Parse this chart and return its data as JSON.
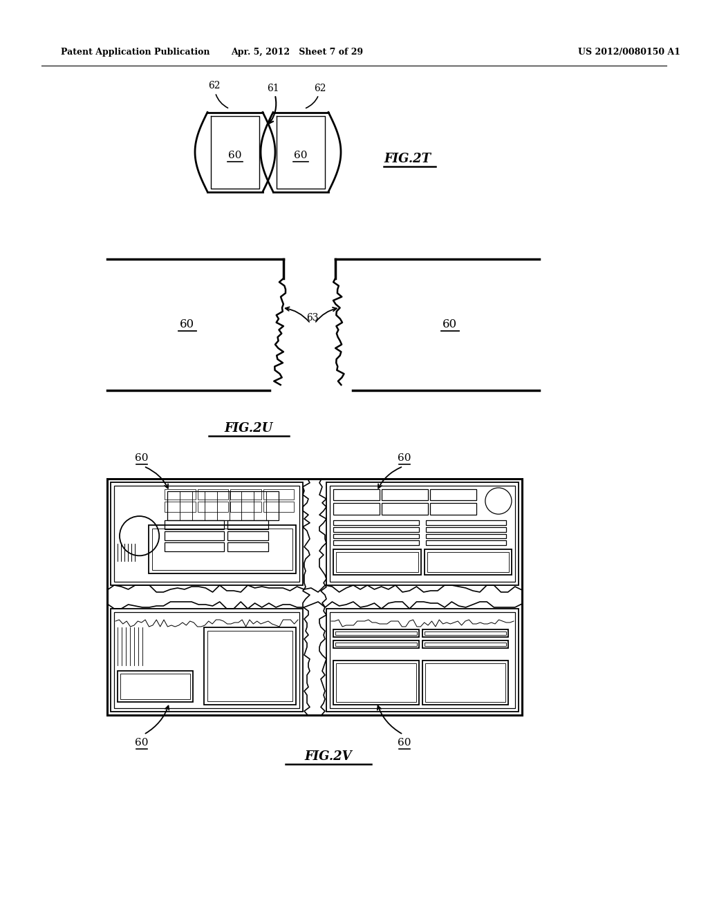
{
  "header_left": "Patent Application Publication",
  "header_mid": "Apr. 5, 2012   Sheet 7 of 29",
  "header_right": "US 2012/0080150 A1",
  "fig2t_label": "FIG.2T",
  "fig2u_label": "FIG.2U",
  "fig2v_label": "FIG.2V",
  "bg_color": "#ffffff",
  "line_color": "#000000"
}
